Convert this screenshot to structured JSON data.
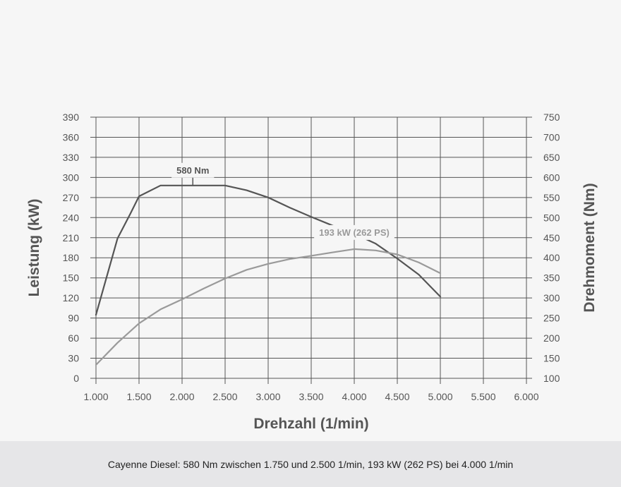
{
  "caption": "Cayenne Diesel: 580 Nm zwischen 1.750 und 2.500 1/min, 193 kW (262 PS) bei 4.000 1/min",
  "chart_data": {
    "type": "line",
    "xlabel": "Drehzahl (1/min)",
    "ylabel_left": "Leistung (kW)",
    "ylabel_right": "Drehmoment (Nm)",
    "xlim": [
      1000,
      6000
    ],
    "ylim_left": [
      0,
      390
    ],
    "ylim_right": [
      100,
      750
    ],
    "x_ticks": [
      "1.000",
      "1.500",
      "2.000",
      "2.500",
      "3.000",
      "3.500",
      "4.000",
      "4.500",
      "5.000",
      "5.500",
      "6.000"
    ],
    "y_left_ticks": [
      "0",
      "30",
      "60",
      "90",
      "120",
      "150",
      "180",
      "210",
      "240",
      "270",
      "300",
      "330",
      "360",
      "390"
    ],
    "y_right_ticks": [
      "100",
      "150",
      "200",
      "250",
      "300",
      "350",
      "400",
      "450",
      "500",
      "550",
      "600",
      "650",
      "700",
      "750"
    ],
    "grid": true,
    "series": [
      {
        "axis": "right",
        "color": "#555555",
        "x": [
          1000,
          1250,
          1400,
          1500,
          1750,
          2000,
          2250,
          2500,
          2750,
          3000,
          3250,
          3500,
          3750,
          4000,
          4250,
          4500,
          4750,
          5000
        ],
        "values": [
          258,
          448,
          510,
          553,
          580,
          580,
          580,
          580,
          568,
          550,
          525,
          502,
          480,
          460,
          435,
          398,
          358,
          303
        ]
      },
      {
        "axis": "left",
        "color": "#9a9a9a",
        "x": [
          1000,
          1250,
          1500,
          1750,
          2000,
          2250,
          2500,
          2750,
          3000,
          3250,
          3500,
          3750,
          4000,
          4250,
          4500,
          4750,
          5000
        ],
        "values": [
          20,
          53,
          82,
          103,
          118,
          134,
          149,
          162,
          171,
          178,
          183,
          188,
          193,
          191,
          185,
          173,
          157
        ]
      }
    ],
    "annotations": [
      {
        "text": "580 Nm",
        "x": 2125,
        "y": 580,
        "axis": "right",
        "color": "#555555"
      },
      {
        "text": "193 kW (262 PS)",
        "x": 4000,
        "y": 193,
        "axis": "left",
        "color": "#9a9a9a"
      }
    ]
  }
}
